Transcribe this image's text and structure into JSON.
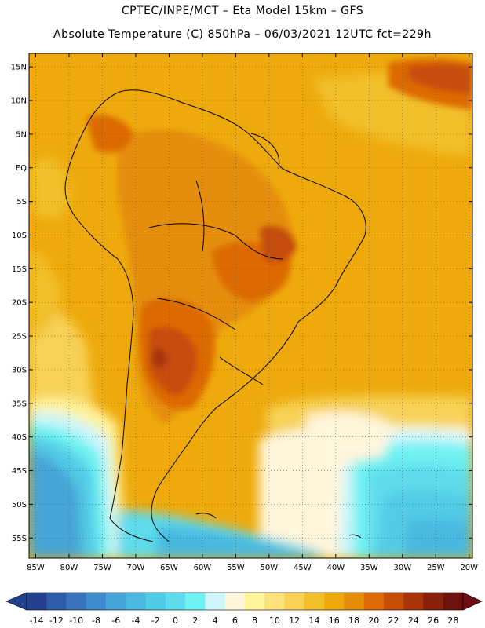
{
  "title": {
    "line1": "CPTEC/INPE/MCT –  Eta Model 15km – GFS",
    "line2": "Absolute Temperature (C) 850hPa – 06/03/2021 12UTC fct=229h"
  },
  "map": {
    "lon_range": [
      -86,
      -19.5
    ],
    "lat_range": [
      -58,
      17
    ],
    "lat_labels": [
      "15N",
      "10N",
      "5N",
      "EQ",
      "5S",
      "10S",
      "15S",
      "20S",
      "25S",
      "30S",
      "35S",
      "40S",
      "45S",
      "50S",
      "55S"
    ],
    "lat_values": [
      15,
      10,
      5,
      0,
      -5,
      -10,
      -15,
      -20,
      -25,
      -30,
      -35,
      -40,
      -45,
      -50,
      -55
    ],
    "lon_labels": [
      "85W",
      "80W",
      "75W",
      "70W",
      "65W",
      "60W",
      "55W",
      "50W",
      "45W",
      "40W",
      "35W",
      "30W",
      "25W",
      "20W"
    ],
    "lon_values": [
      -85,
      -80,
      -75,
      -70,
      -65,
      -60,
      -55,
      -50,
      -45,
      -40,
      -35,
      -30,
      -25,
      -20
    ]
  },
  "colorbar": {
    "labels": [
      "-14",
      "-12",
      "-10",
      "-8",
      "-6",
      "-4",
      "-2",
      "0",
      "2",
      "4",
      "6",
      "8",
      "10",
      "12",
      "14",
      "16",
      "18",
      "20",
      "22",
      "24",
      "26",
      "28"
    ],
    "colors": [
      "#23408e",
      "#2e5aa8",
      "#3a73bd",
      "#3f8bcb",
      "#47a4d6",
      "#4ab8df",
      "#52cbe6",
      "#5fdcec",
      "#6ff2f2",
      "#cff5fa",
      "#fff6dc",
      "#fff29a",
      "#fbe27a",
      "#f7d257",
      "#f1c02c",
      "#eeaa0c",
      "#e58e09",
      "#dd6a05",
      "#c64d07",
      "#a8340a",
      "#88200e",
      "#6e120e"
    ],
    "left_arrow_color": "#23408e",
    "right_arrow_color": "#6e0f14"
  }
}
